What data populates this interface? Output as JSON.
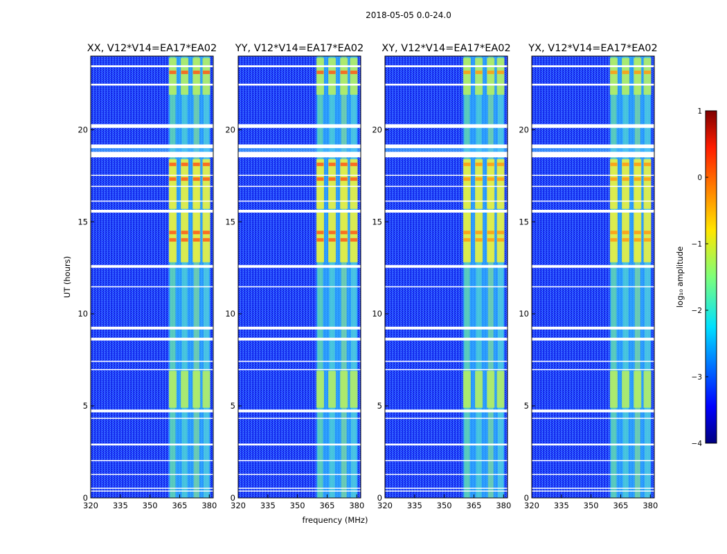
{
  "suptitle": "2018-05-05 0.0-24.0",
  "chart_data": {
    "type": "heatmap",
    "title": "2018-05-05 0.0-24.0",
    "xlabel": "frequency (MHz)",
    "ylabel": "UT (hours)",
    "xlim": [
      320,
      382
    ],
    "ylim": [
      0,
      24
    ],
    "xticks": [
      320,
      335,
      350,
      365,
      380
    ],
    "yticks": [
      0,
      5,
      10,
      15,
      20
    ],
    "panels": [
      {
        "title": "XX, V12*V14=EA17*EA02"
      },
      {
        "title": "YY, V12*V14=EA17*EA02"
      },
      {
        "title": "XY, V12*V14=EA17*EA02"
      },
      {
        "title": "YX, V12*V14=EA17*EA02"
      }
    ],
    "colorbar": {
      "label": "log₁₀ amplitude",
      "min": -4,
      "max": 1,
      "ticks": [
        1,
        0,
        -1,
        -2,
        -3,
        -4
      ],
      "colormap": "jet"
    },
    "rfi_band_mhz": [
      359.5,
      380.5
    ],
    "rfi_channel_centers_mhz": [
      361.5,
      367.5,
      373.5,
      378.5
    ],
    "flagged_hours": [
      [
        23.4,
        23.5
      ],
      [
        22.4,
        22.5
      ],
      [
        20.1,
        20.3
      ],
      [
        19.0,
        19.2
      ],
      [
        18.5,
        18.8
      ],
      [
        17.5,
        17.55
      ],
      [
        16.9,
        16.95
      ],
      [
        16.1,
        16.15
      ],
      [
        15.5,
        15.65
      ],
      [
        12.5,
        12.65
      ],
      [
        11.45,
        11.5
      ],
      [
        9.15,
        9.3
      ],
      [
        8.55,
        8.7
      ],
      [
        7.4,
        7.45
      ],
      [
        6.95,
        7.0
      ],
      [
        4.65,
        4.8
      ],
      [
        4.3,
        4.35
      ],
      [
        2.85,
        2.95
      ],
      [
        2.0,
        2.05
      ],
      [
        1.25,
        1.3
      ],
      [
        0.5,
        0.55
      ],
      [
        0.35,
        0.4
      ]
    ]
  }
}
